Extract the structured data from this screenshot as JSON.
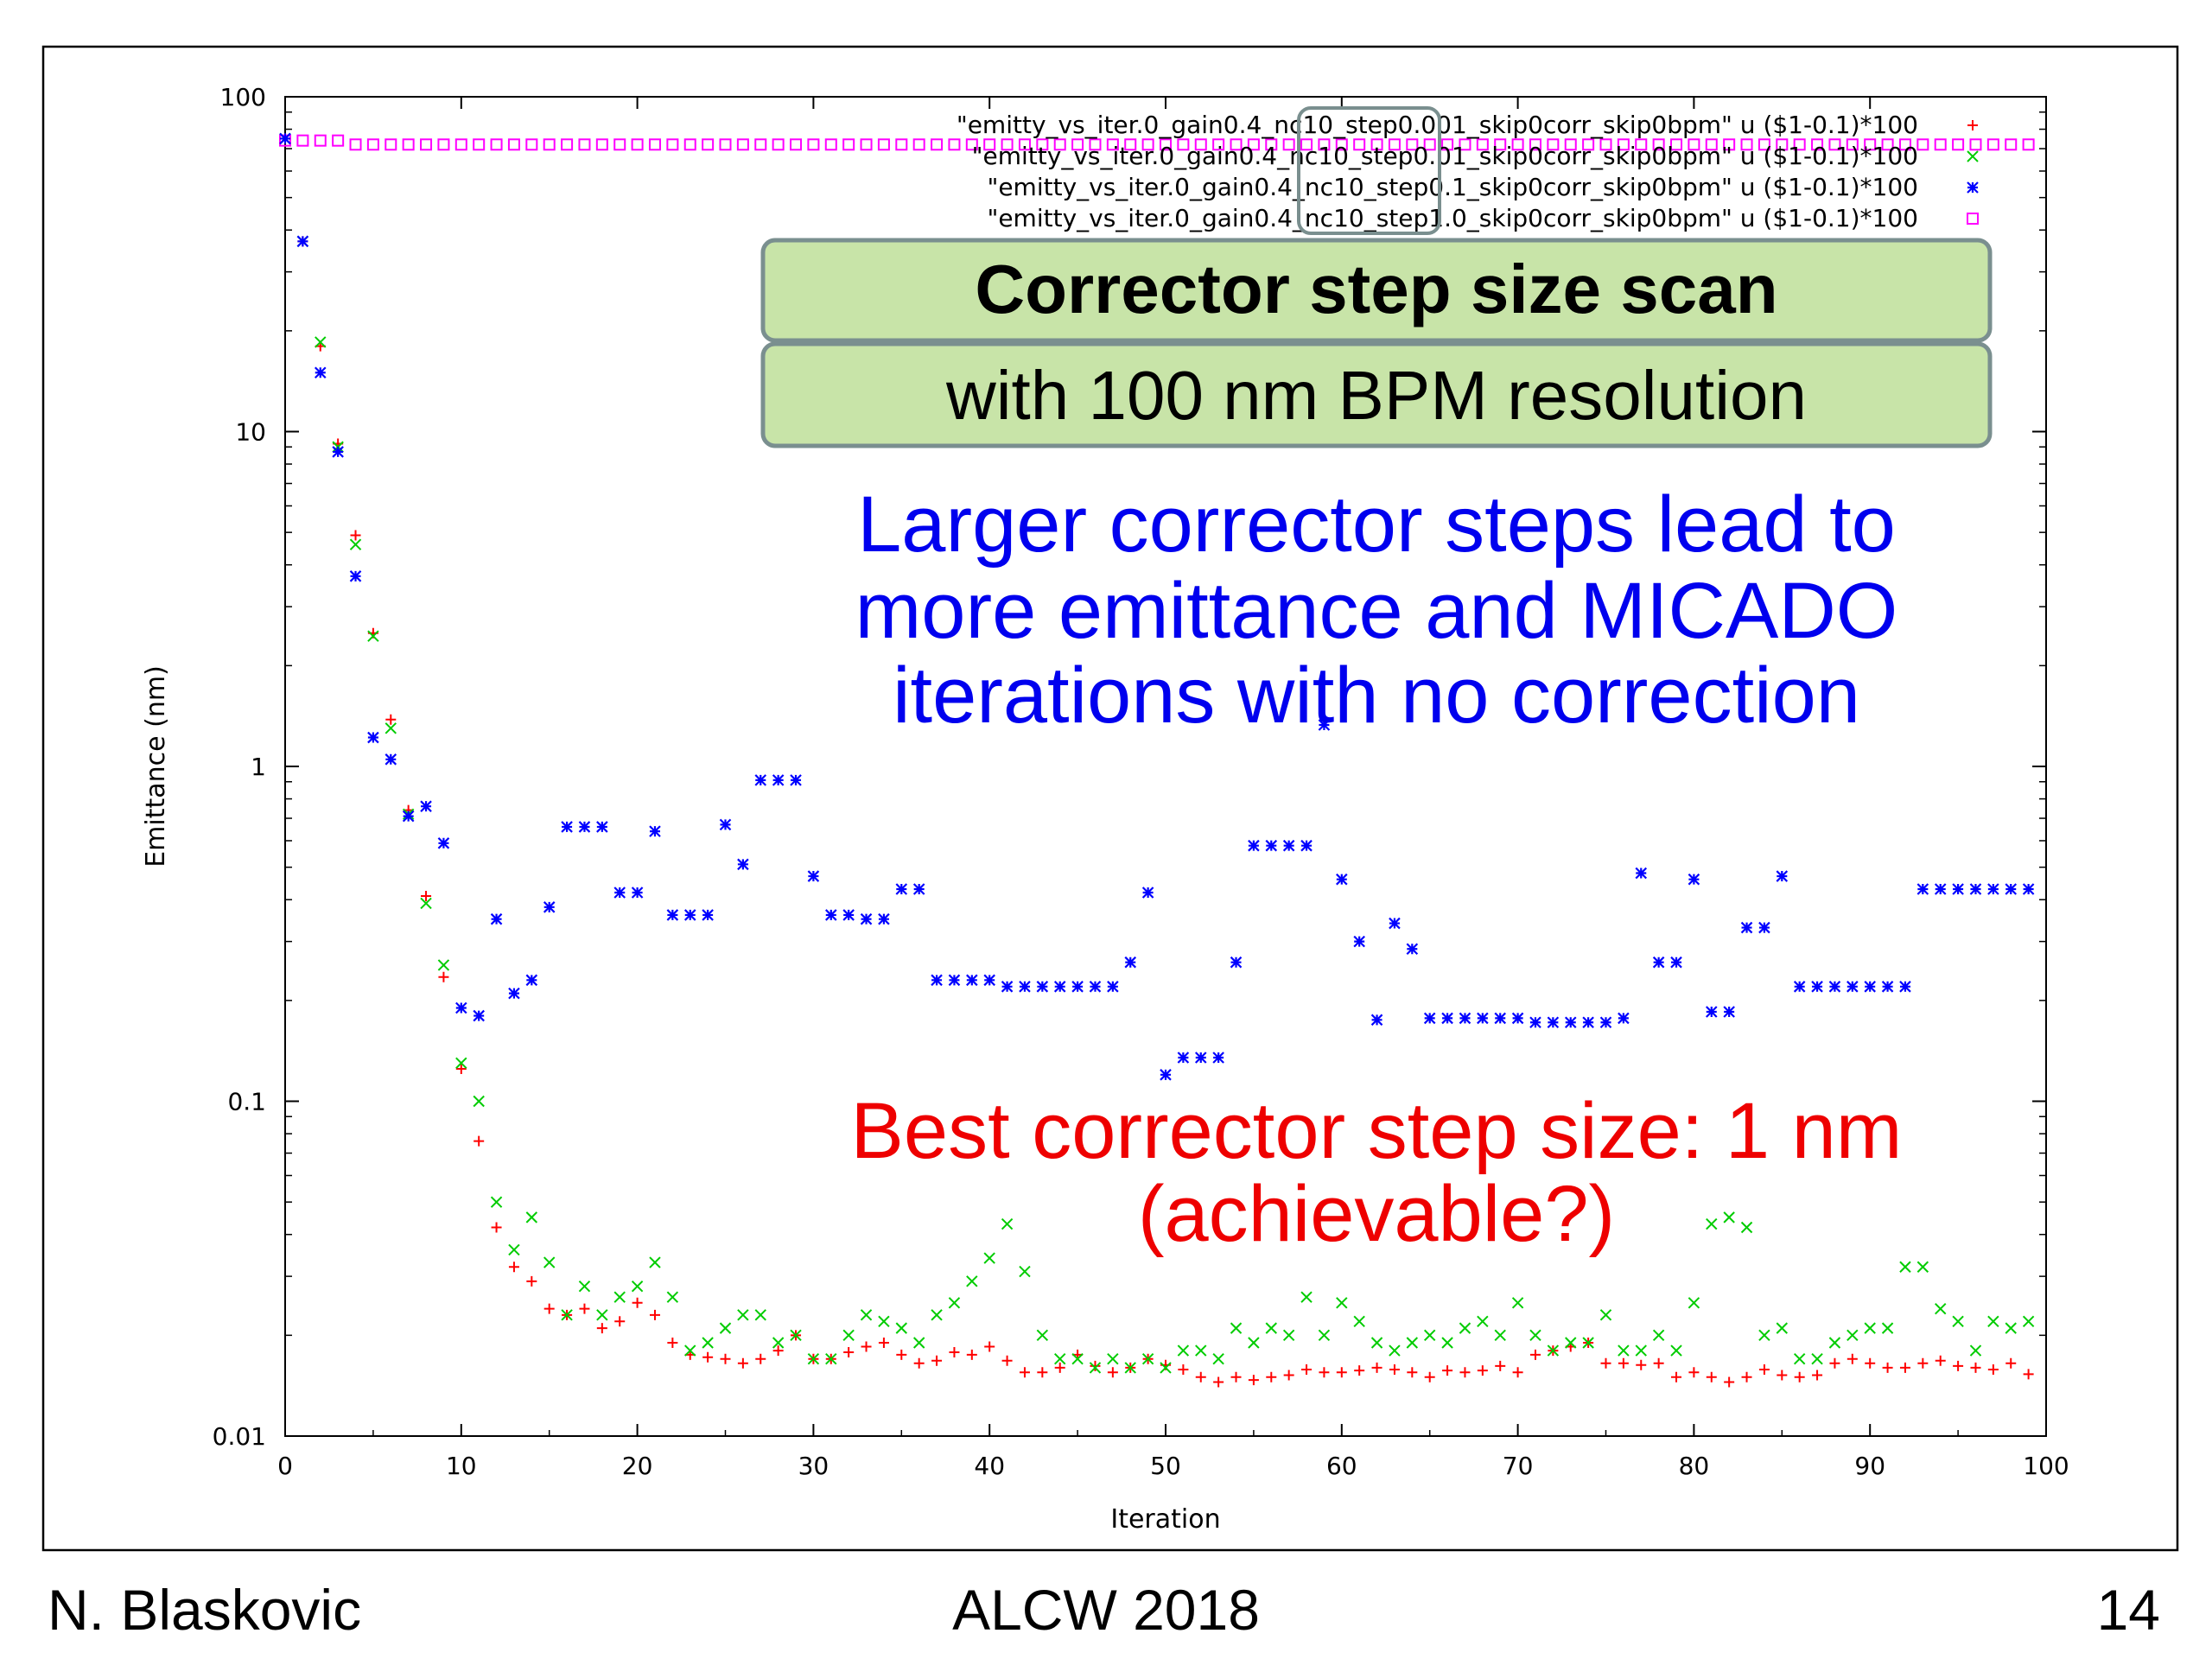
{
  "chart_data": {
    "type": "scatter",
    "xlabel": "Iteration",
    "ylabel": "Emittance (nm)",
    "yscale": "log",
    "xlim": [
      0,
      100
    ],
    "ylim": [
      0.01,
      100
    ],
    "x_ticks": [
      "0",
      "10",
      "20",
      "30",
      "40",
      "50",
      "60",
      "70",
      "80",
      "90",
      "100"
    ],
    "y_ticks": [
      "0.01",
      "0.1",
      "1",
      "10",
      "100"
    ],
    "grid": false,
    "legend_position": "top-right",
    "series": [
      {
        "name": "\"emitty_vs_iter.0_gain0.4_nc10_step0.001_skip0corr_skip0bpm\" u ($1-0.1)*100",
        "marker": "+",
        "color": "#ff0000",
        "x": [
          0,
          1,
          2,
          3,
          4,
          5,
          6,
          7,
          8,
          9,
          10,
          11,
          12,
          13,
          14,
          15,
          16,
          17,
          18,
          19,
          20,
          21,
          22,
          23,
          24,
          25,
          26,
          27,
          28,
          29,
          30,
          31,
          32,
          33,
          34,
          35,
          36,
          37,
          38,
          39,
          40,
          41,
          42,
          43,
          44,
          45,
          46,
          47,
          48,
          49,
          50,
          51,
          52,
          53,
          54,
          55,
          56,
          57,
          58,
          59,
          60,
          61,
          62,
          63,
          64,
          65,
          66,
          67,
          68,
          69,
          70,
          71,
          72,
          73,
          74,
          75,
          76,
          77,
          78,
          79,
          80,
          81,
          82,
          83,
          84,
          85,
          86,
          87,
          88,
          89,
          90,
          91,
          92,
          93,
          94,
          95,
          96,
          97,
          98,
          99
        ],
        "y": [
          75,
          37,
          18,
          9.2,
          4.9,
          2.5,
          1.38,
          0.74,
          0.41,
          0.235,
          0.125,
          0.076,
          0.042,
          0.032,
          0.029,
          0.024,
          0.023,
          0.024,
          0.021,
          0.022,
          0.025,
          0.023,
          0.019,
          0.0175,
          0.0172,
          0.017,
          0.0165,
          0.017,
          0.018,
          0.02,
          0.017,
          0.017,
          0.0178,
          0.0185,
          0.019,
          0.0175,
          0.0165,
          0.0168,
          0.0178,
          0.0175,
          0.0185,
          0.0168,
          0.0155,
          0.0155,
          0.016,
          0.0175,
          0.0162,
          0.0155,
          0.016,
          0.017,
          0.0163,
          0.0158,
          0.015,
          0.0145,
          0.015,
          0.0147,
          0.015,
          0.0152,
          0.0158,
          0.0155,
          0.0155,
          0.0157,
          0.016,
          0.0158,
          0.0155,
          0.015,
          0.0157,
          0.0155,
          0.0157,
          0.0162,
          0.0155,
          0.0175,
          0.018,
          0.0185,
          0.019,
          0.0165,
          0.0165,
          0.0163,
          0.0165,
          0.015,
          0.0155,
          0.015,
          0.0145,
          0.015,
          0.0158,
          0.0152,
          0.015,
          0.0152,
          0.0165,
          0.017,
          0.0165,
          0.016,
          0.016,
          0.0165,
          0.0168,
          0.0162,
          0.016,
          0.0158,
          0.0165,
          0.0153
        ]
      },
      {
        "name": "\"emitty_vs_iter.0_gain0.4_nc10_step0.01_skip0corr_skip0bpm\" u ($1-0.1)*100",
        "marker": "x",
        "color": "#00cc00",
        "x": [
          0,
          1,
          2,
          3,
          4,
          5,
          6,
          7,
          8,
          9,
          10,
          11,
          12,
          13,
          14,
          15,
          16,
          17,
          18,
          19,
          20,
          21,
          22,
          23,
          24,
          25,
          26,
          27,
          28,
          29,
          30,
          31,
          32,
          33,
          34,
          35,
          36,
          37,
          38,
          39,
          40,
          41,
          42,
          43,
          44,
          45,
          46,
          47,
          48,
          49,
          50,
          51,
          52,
          53,
          54,
          55,
          56,
          57,
          58,
          59,
          60,
          61,
          62,
          63,
          64,
          65,
          66,
          67,
          68,
          69,
          70,
          71,
          72,
          73,
          74,
          75,
          76,
          77,
          78,
          79,
          80,
          81,
          82,
          83,
          84,
          85,
          86,
          87,
          88,
          89,
          90,
          91,
          92,
          93,
          94,
          95,
          96,
          97,
          98,
          99
        ],
        "y": [
          75,
          37,
          18.5,
          9,
          4.6,
          2.45,
          1.3,
          0.72,
          0.39,
          0.255,
          0.13,
          0.1,
          0.05,
          0.036,
          0.045,
          0.033,
          0.023,
          0.028,
          0.023,
          0.026,
          0.028,
          0.033,
          0.026,
          0.018,
          0.019,
          0.021,
          0.023,
          0.023,
          0.019,
          0.02,
          0.017,
          0.017,
          0.02,
          0.023,
          0.022,
          0.021,
          0.019,
          0.023,
          0.025,
          0.029,
          0.034,
          0.043,
          0.031,
          0.02,
          0.017,
          0.017,
          0.016,
          0.017,
          0.016,
          0.017,
          0.016,
          0.018,
          0.018,
          0.017,
          0.021,
          0.019,
          0.021,
          0.02,
          0.026,
          0.02,
          0.025,
          0.022,
          0.019,
          0.018,
          0.019,
          0.02,
          0.019,
          0.021,
          0.022,
          0.02,
          0.025,
          0.02,
          0.018,
          0.019,
          0.019,
          0.023,
          0.018,
          0.018,
          0.02,
          0.018,
          0.025,
          0.043,
          0.045,
          0.042,
          0.02,
          0.021,
          0.017,
          0.017,
          0.019,
          0.02,
          0.021,
          0.021,
          0.032,
          0.032,
          0.024,
          0.022,
          0.018,
          0.022,
          0.021,
          0.022
        ]
      },
      {
        "name": "\"emitty_vs_iter.0_gain0.4_nc10_step0.1_skip0corr_skip0bpm\" u ($1-0.1)*100",
        "marker": "*",
        "color": "#0000ff",
        "x": [
          0,
          1,
          2,
          3,
          4,
          5,
          6,
          7,
          8,
          9,
          10,
          11,
          12,
          13,
          14,
          15,
          16,
          17,
          18,
          19,
          20,
          21,
          22,
          23,
          24,
          25,
          26,
          27,
          28,
          29,
          30,
          31,
          32,
          33,
          34,
          35,
          36,
          37,
          38,
          39,
          40,
          41,
          42,
          43,
          44,
          45,
          46,
          47,
          48,
          49,
          50,
          51,
          52,
          53,
          54,
          55,
          56,
          57,
          58,
          59,
          60,
          61,
          62,
          63,
          64,
          65,
          66,
          67,
          68,
          69,
          70,
          71,
          72,
          73,
          74,
          75,
          76,
          77,
          78,
          79,
          80,
          81,
          82,
          83,
          84,
          85,
          86,
          87,
          88,
          89,
          90,
          91,
          92,
          93,
          94,
          95,
          96,
          97,
          98,
          99
        ],
        "y": [
          75,
          37,
          15,
          8.7,
          3.7,
          1.22,
          1.05,
          0.71,
          0.76,
          0.59,
          0.19,
          0.18,
          0.35,
          0.21,
          0.23,
          0.38,
          0.66,
          0.66,
          0.66,
          0.42,
          0.42,
          0.64,
          0.36,
          0.36,
          0.36,
          0.67,
          0.51,
          0.91,
          0.91,
          0.91,
          0.47,
          0.36,
          0.36,
          0.35,
          0.35,
          0.43,
          0.43,
          0.23,
          0.23,
          0.23,
          0.23,
          0.22,
          0.22,
          0.22,
          0.22,
          0.22,
          0.22,
          0.22,
          0.26,
          0.42,
          0.12,
          0.135,
          0.135,
          0.135,
          0.26,
          0.58,
          0.58,
          0.58,
          0.58,
          1.33,
          0.46,
          0.3,
          0.175,
          0.34,
          0.285,
          0.177,
          0.177,
          0.177,
          0.177,
          0.177,
          0.177,
          0.172,
          0.172,
          0.172,
          0.172,
          0.172,
          0.177,
          0.48,
          0.26,
          0.26,
          0.46,
          0.185,
          0.185,
          0.33,
          0.33,
          0.47,
          0.22,
          0.22,
          0.22,
          0.22,
          0.22,
          0.22,
          0.22,
          0.43,
          0.43,
          0.43,
          0.43,
          0.43,
          0.43,
          0.43
        ]
      },
      {
        "name": "\"emitty_vs_iter.0_gain0.4_nc10_step1.0_skip0corr_skip0bpm\" u ($1-0.1)*100",
        "marker": "square",
        "color": "#ff00ff",
        "x": [
          0,
          1,
          2,
          3,
          4,
          5,
          6,
          7,
          8,
          9,
          10,
          11,
          12,
          13,
          14,
          15,
          16,
          17,
          18,
          19,
          20,
          21,
          22,
          23,
          24,
          25,
          26,
          27,
          28,
          29,
          30,
          31,
          32,
          33,
          34,
          35,
          36,
          37,
          38,
          39,
          40,
          41,
          42,
          43,
          44,
          45,
          46,
          47,
          48,
          49,
          50,
          51,
          52,
          53,
          54,
          55,
          56,
          57,
          58,
          59,
          60,
          61,
          62,
          63,
          64,
          65,
          66,
          67,
          68,
          69,
          70,
          71,
          72,
          73,
          74,
          75,
          76,
          77,
          78,
          79,
          80,
          81,
          82,
          83,
          84,
          85,
          86,
          87,
          88,
          89,
          90,
          91,
          92,
          93,
          94,
          95,
          96,
          97,
          98,
          99
        ],
        "y": [
          74,
          74,
          74,
          74,
          72,
          72,
          72,
          72,
          72,
          72,
          72,
          72,
          72,
          72,
          72,
          72,
          72,
          72,
          72,
          72,
          72,
          72,
          72,
          72,
          72,
          72,
          72,
          72,
          72,
          72,
          72,
          72,
          72,
          72,
          72,
          72,
          72,
          72,
          72,
          72,
          72,
          72,
          72,
          72,
          72,
          72,
          72,
          72,
          72,
          72,
          72,
          72,
          72,
          72,
          72,
          72,
          72,
          72,
          72,
          72,
          72,
          72,
          72,
          72,
          72,
          72,
          72,
          72,
          72,
          72,
          72,
          72,
          72,
          72,
          72,
          72,
          72,
          72,
          72,
          72,
          72,
          72,
          72,
          72,
          72,
          72,
          72,
          72,
          72,
          72,
          72,
          72,
          72,
          72,
          72,
          72,
          72,
          72,
          72,
          72
        ]
      }
    ],
    "annotations": {
      "title_box": "Corrector step size scan",
      "subtitle_box": "with 100 nm BPM resolution",
      "blue_text": [
        "Larger corrector steps lead to",
        "more emittance and MICADO",
        "iterations with no correction"
      ],
      "red_text": [
        "Best corrector step size: 1 nm",
        "(achievable?)"
      ]
    }
  },
  "colors": {
    "box_fill": "#c8e4a8",
    "box_stroke": "#7a8f8f",
    "blue_text": "#0000ee",
    "red_text": "#ee0000"
  },
  "footer": {
    "author": "N. Blaskovic",
    "conference": "ALCW 2018",
    "page": "14"
  }
}
